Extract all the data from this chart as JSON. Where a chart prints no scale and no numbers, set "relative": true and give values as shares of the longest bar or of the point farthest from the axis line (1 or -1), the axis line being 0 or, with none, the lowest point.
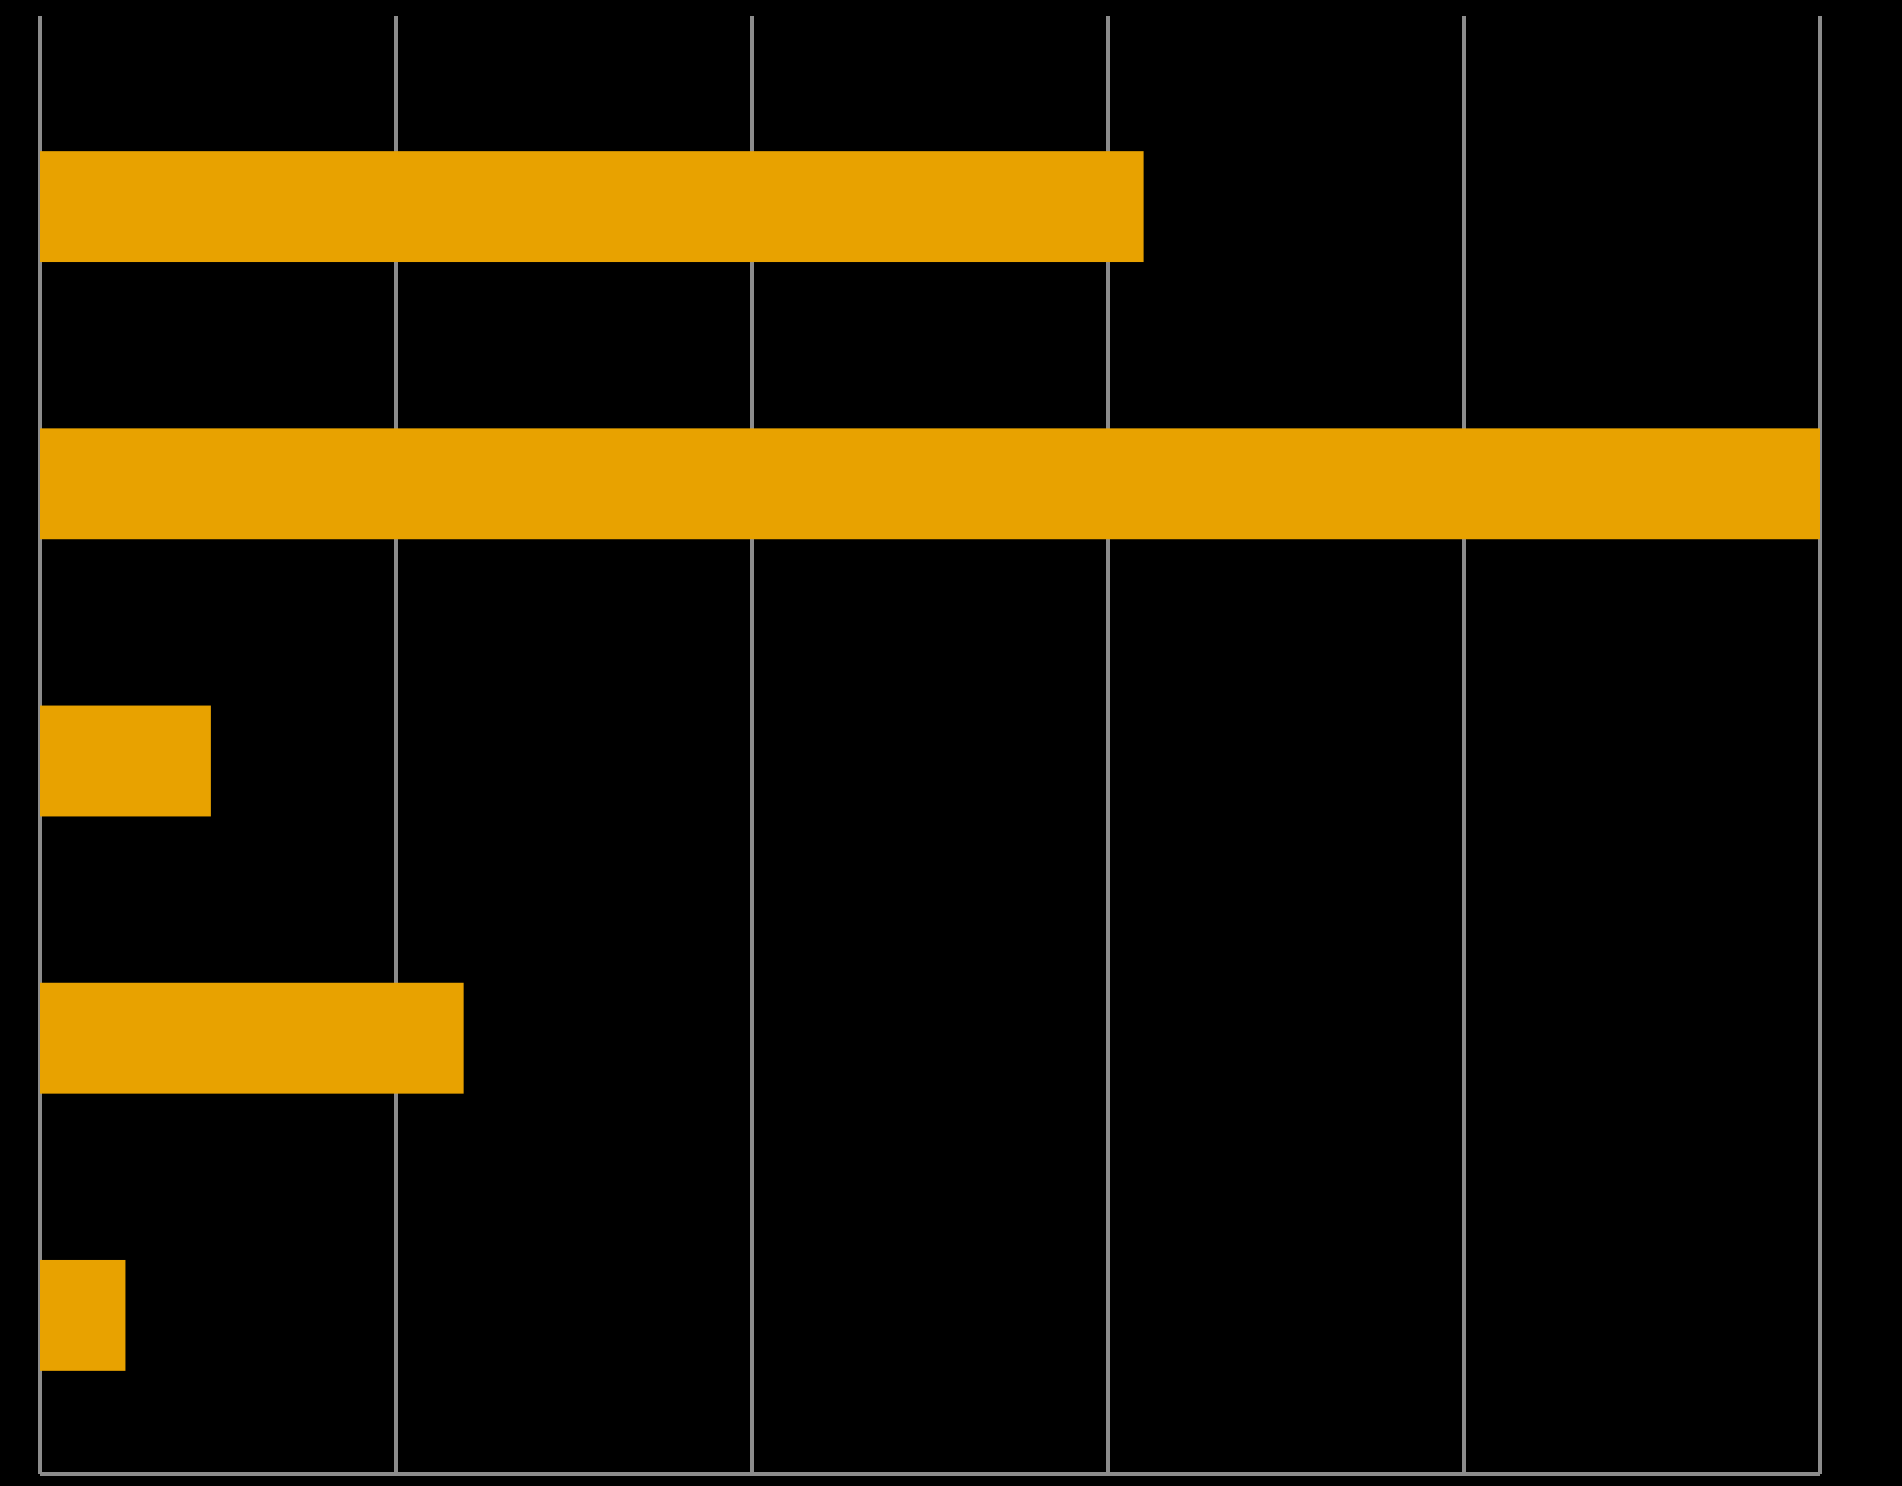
{
  "chart_data": {
    "type": "bar",
    "orientation": "horizontal",
    "relative": true,
    "categories": [
      null,
      null,
      null,
      null,
      null
    ],
    "values": [
      0.62,
      1,
      0.096,
      0.238,
      0.048
    ],
    "color": "#e8a200",
    "grid": true
  }
}
